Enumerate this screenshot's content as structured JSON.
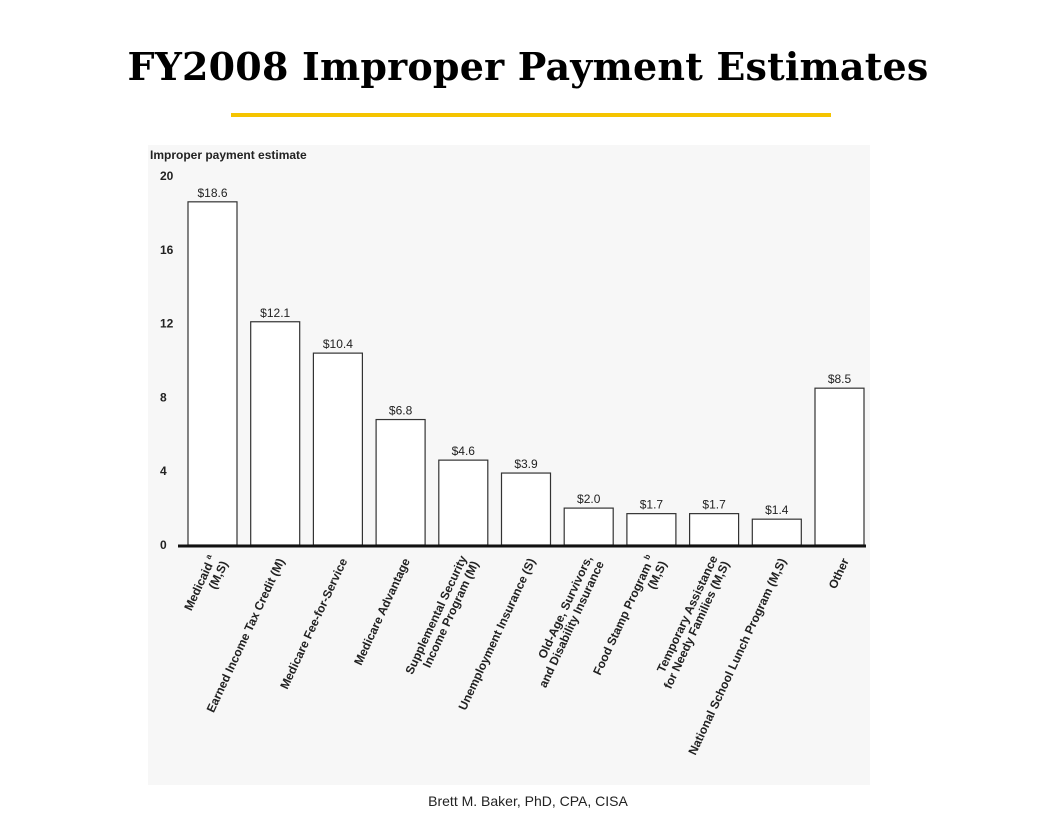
{
  "slide": {
    "title": "FY2008 Improper Payment Estimates",
    "footer": "Brett M. Baker, PhD, CPA, CISA",
    "accent_color": "#f5c400"
  },
  "chart_data": {
    "type": "bar",
    "title": "",
    "ylabel": "Improper payment estimate",
    "xlabel": "",
    "ylim": [
      0,
      20
    ],
    "yticks": [
      0,
      4,
      8,
      12,
      16,
      20
    ],
    "grid": false,
    "categories": [
      "Medicaid a (M,S)",
      "Earned Income Tax Credit (M)",
      "Medicare Fee-for-Service",
      "Medicare Advantage",
      "Supplemental Security Income Program (M)",
      "Unemployment Insurance (S)",
      "Old-Age, Survivors, and Disability Insurance",
      "Food Stamp Program b (M,S)",
      "Temporary Assistance for Needy Families (M,S)",
      "National School Lunch Program (M,S)",
      "Other"
    ],
    "category_lines": [
      [
        "Medicaid",
        "(M,S)"
      ],
      [
        "Earned Income Tax Credit (M)"
      ],
      [
        "Medicare Fee-for-Service"
      ],
      [
        "Medicare Advantage"
      ],
      [
        "Supplemental Security",
        "Income Program (M)"
      ],
      [
        "Unemployment Insurance (S)"
      ],
      [
        "Old-Age, Survivors,",
        "and Disability Insurance"
      ],
      [
        "Food Stamp Program",
        "(M,S)"
      ],
      [
        "Temporary Assistance",
        "for Needy Families (M,S)"
      ],
      [
        "National School Lunch Program (M,S)"
      ],
      [
        "Other"
      ]
    ],
    "footnote_marks": [
      "a",
      "",
      "",
      "",
      "",
      "",
      "",
      "b",
      "",
      "",
      ""
    ],
    "values": [
      18.6,
      12.1,
      10.4,
      6.8,
      4.6,
      3.9,
      2.0,
      1.7,
      1.7,
      1.4,
      8.5
    ],
    "value_labels": [
      "$18.6",
      "$12.1",
      "$10.4",
      "$6.8",
      "$4.6",
      "$3.9",
      "$2.0",
      "$1.7",
      "$1.7",
      "$1.4",
      "$8.5"
    ]
  }
}
